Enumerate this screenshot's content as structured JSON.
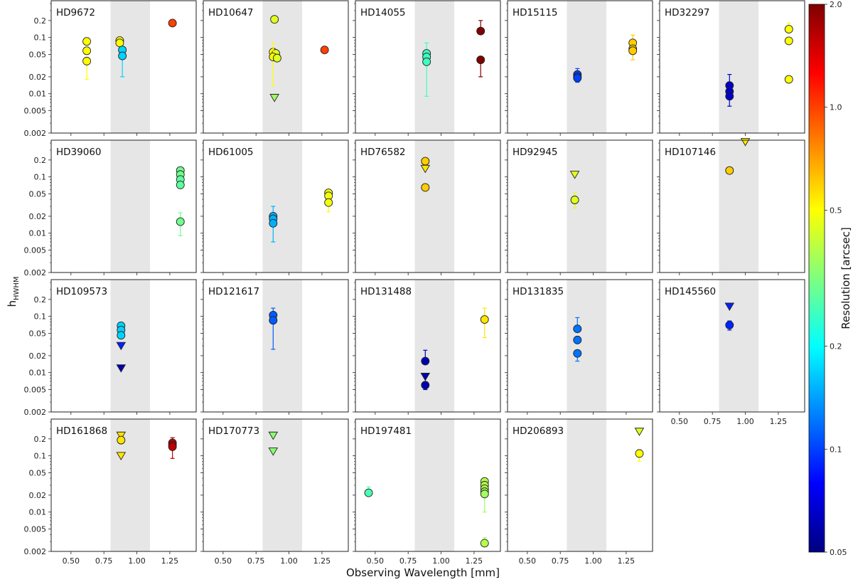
{
  "chart_data": {
    "type": "scatter",
    "xlabel": "Observing Wavelength [mm]",
    "ylabel": "h",
    "ylabel_sub": "HWHM",
    "xlim": [
      0.35,
      1.45
    ],
    "ylim": [
      0.002,
      0.45
    ],
    "xticks": [
      "0.50",
      "0.75",
      "1.00",
      "1.25"
    ],
    "xtick_values": [
      0.5,
      0.75,
      1.0,
      1.25
    ],
    "yticks": [
      "0.002",
      "0.005",
      "0.01",
      "0.02",
      "0.05",
      "0.1",
      "0.2"
    ],
    "ytick_values": [
      0.002,
      0.005,
      0.01,
      0.02,
      0.05,
      0.1,
      0.2
    ],
    "shaded_band": [
      0.8,
      1.1
    ],
    "colorbar": {
      "label": "Resolution [arcsec]",
      "range": [
        0.05,
        2.0
      ],
      "ticks": [
        "0.05",
        "0.1",
        "0.2",
        "0.5",
        "1.0",
        "2.0"
      ],
      "tick_values": [
        0.05,
        0.1,
        0.2,
        0.5,
        1.0,
        2.0
      ],
      "colormap": "jet"
    },
    "panels": [
      {
        "name": "HD9672",
        "points": [
          {
            "x": 0.62,
            "y": 0.085,
            "r": 0.5
          },
          {
            "x": 0.62,
            "y": 0.058,
            "r": 0.5
          },
          {
            "x": 0.62,
            "y": 0.038,
            "r": 0.5,
            "lo": 0.018
          },
          {
            "x": 0.87,
            "y": 0.088,
            "r": 0.5
          },
          {
            "x": 0.87,
            "y": 0.08,
            "r": 0.5
          },
          {
            "x": 0.89,
            "y": 0.06,
            "r": 0.17
          },
          {
            "x": 0.89,
            "y": 0.047,
            "r": 0.17,
            "lo": 0.02
          },
          {
            "x": 1.27,
            "y": 0.18,
            "r": 1.0
          }
        ]
      },
      {
        "name": "HD10647",
        "points": [
          {
            "x": 0.89,
            "y": 0.21,
            "r": 0.45
          },
          {
            "x": 0.88,
            "y": 0.055,
            "r": 0.5
          },
          {
            "x": 0.9,
            "y": 0.052,
            "r": 0.45
          },
          {
            "x": 0.88,
            "y": 0.045,
            "r": 0.5,
            "lo": 0.014,
            "hi": 0.08
          },
          {
            "x": 0.91,
            "y": 0.043,
            "r": 0.45
          },
          {
            "x": 0.89,
            "y": 0.0085,
            "r": 0.35,
            "lim": true
          },
          {
            "x": 1.27,
            "y": 0.06,
            "r": 1.0
          }
        ]
      },
      {
        "name": "HD14055",
        "points": [
          {
            "x": 0.89,
            "y": 0.052,
            "r": 0.25,
            "hi": 0.08
          },
          {
            "x": 0.89,
            "y": 0.045,
            "r": 0.25
          },
          {
            "x": 0.89,
            "y": 0.037,
            "r": 0.25,
            "lo": 0.009
          },
          {
            "x": 1.3,
            "y": 0.13,
            "r": 2.0,
            "hi": 0.2
          },
          {
            "x": 1.3,
            "y": 0.04,
            "r": 2.0,
            "lo": 0.02
          }
        ]
      },
      {
        "name": "HD15115",
        "points": [
          {
            "x": 0.88,
            "y": 0.022,
            "r": 0.1,
            "hi": 0.028
          },
          {
            "x": 0.88,
            "y": 0.02,
            "r": 0.1
          },
          {
            "x": 0.88,
            "y": 0.019,
            "r": 0.1,
            "lo": 0.016
          },
          {
            "x": 1.3,
            "y": 0.08,
            "r": 0.6,
            "hi": 0.11
          },
          {
            "x": 1.3,
            "y": 0.063,
            "r": 0.6
          },
          {
            "x": 1.3,
            "y": 0.058,
            "r": 0.6,
            "lo": 0.04
          }
        ]
      },
      {
        "name": "HD32297",
        "points": [
          {
            "x": 0.88,
            "y": 0.014,
            "r": 0.065,
            "hi": 0.022
          },
          {
            "x": 0.88,
            "y": 0.011,
            "r": 0.065
          },
          {
            "x": 0.88,
            "y": 0.009,
            "r": 0.065,
            "lo": 0.006
          },
          {
            "x": 1.33,
            "y": 0.14,
            "r": 0.5,
            "hi": 0.18
          },
          {
            "x": 1.33,
            "y": 0.087,
            "r": 0.5
          },
          {
            "x": 1.33,
            "y": 0.018,
            "r": 0.5
          }
        ]
      },
      {
        "name": "HD39060",
        "points": [
          {
            "x": 1.33,
            "y": 0.13,
            "r": 0.3
          },
          {
            "x": 1.33,
            "y": 0.11,
            "r": 0.3
          },
          {
            "x": 1.33,
            "y": 0.09,
            "r": 0.28
          },
          {
            "x": 1.33,
            "y": 0.072,
            "r": 0.28
          },
          {
            "x": 1.33,
            "y": 0.016,
            "r": 0.3,
            "lo": 0.009,
            "hi": 0.023
          }
        ]
      },
      {
        "name": "HD61005",
        "points": [
          {
            "x": 0.88,
            "y": 0.02,
            "r": 0.15,
            "hi": 0.03
          },
          {
            "x": 0.88,
            "y": 0.018,
            "r": 0.15
          },
          {
            "x": 0.88,
            "y": 0.015,
            "r": 0.15,
            "lo": 0.007
          },
          {
            "x": 1.3,
            "y": 0.052,
            "r": 0.48
          },
          {
            "x": 1.3,
            "y": 0.046,
            "r": 0.48
          },
          {
            "x": 1.3,
            "y": 0.035,
            "r": 0.48,
            "lo": 0.024
          }
        ]
      },
      {
        "name": "HD76582",
        "points": [
          {
            "x": 0.88,
            "y": 0.19,
            "r": 0.6
          },
          {
            "x": 0.88,
            "y": 0.14,
            "r": 0.55,
            "lim": true
          },
          {
            "x": 0.88,
            "y": 0.065,
            "r": 0.6
          }
        ]
      },
      {
        "name": "HD92945",
        "points": [
          {
            "x": 0.86,
            "y": 0.11,
            "r": 0.45,
            "lim": true
          },
          {
            "x": 0.86,
            "y": 0.039,
            "r": 0.45,
            "lo": 0.028,
            "hi": 0.052
          }
        ]
      },
      {
        "name": "HD107146",
        "points": [
          {
            "x": 0.88,
            "y": 0.13,
            "r": 0.6
          },
          {
            "x": 1.0,
            "y": 0.42,
            "r": 0.55,
            "lim": true
          }
        ]
      },
      {
        "name": "HD109573",
        "points": [
          {
            "x": 0.88,
            "y": 0.068,
            "r": 0.17
          },
          {
            "x": 0.88,
            "y": 0.057,
            "r": 0.17
          },
          {
            "x": 0.88,
            "y": 0.046,
            "r": 0.17
          },
          {
            "x": 0.88,
            "y": 0.03,
            "r": 0.09,
            "lim": true
          },
          {
            "x": 0.88,
            "y": 0.012,
            "r": 0.06,
            "lim": true
          }
        ]
      },
      {
        "name": "HD121617",
        "points": [
          {
            "x": 0.88,
            "y": 0.105,
            "r": 0.11,
            "hi": 0.14
          },
          {
            "x": 0.88,
            "y": 0.085,
            "r": 0.11,
            "lo": 0.026
          }
        ]
      },
      {
        "name": "HD131488",
        "points": [
          {
            "x": 0.88,
            "y": 0.016,
            "r": 0.06,
            "hi": 0.025
          },
          {
            "x": 0.88,
            "y": 0.0085,
            "r": 0.06,
            "lim": true
          },
          {
            "x": 0.88,
            "y": 0.006,
            "r": 0.06,
            "lo": 0.005
          },
          {
            "x": 1.33,
            "y": 0.088,
            "r": 0.55,
            "lo": 0.042,
            "hi": 0.14
          }
        ]
      },
      {
        "name": "HD131835",
        "points": [
          {
            "x": 0.88,
            "y": 0.06,
            "r": 0.12,
            "hi": 0.095
          },
          {
            "x": 0.88,
            "y": 0.038,
            "r": 0.12
          },
          {
            "x": 0.88,
            "y": 0.022,
            "r": 0.12,
            "lo": 0.016
          }
        ]
      },
      {
        "name": "HD145560",
        "points": [
          {
            "x": 0.88,
            "y": 0.15,
            "r": 0.09,
            "lim": true
          },
          {
            "x": 0.88,
            "y": 0.07,
            "r": 0.09,
            "lo": 0.057,
            "hi": 0.083
          }
        ]
      },
      {
        "name": "HD161868",
        "points": [
          {
            "x": 0.88,
            "y": 0.23,
            "r": 0.55,
            "lim": true
          },
          {
            "x": 0.88,
            "y": 0.19,
            "r": 0.55
          },
          {
            "x": 0.88,
            "y": 0.1,
            "r": 0.55,
            "lim": true
          },
          {
            "x": 1.27,
            "y": 0.17,
            "r": 1.6,
            "hi": 0.21
          },
          {
            "x": 1.27,
            "y": 0.155,
            "r": 1.6
          },
          {
            "x": 1.27,
            "y": 0.145,
            "r": 1.6,
            "lo": 0.09
          }
        ]
      },
      {
        "name": "HD170773",
        "points": [
          {
            "x": 0.88,
            "y": 0.23,
            "r": 0.33,
            "lim": true
          },
          {
            "x": 0.88,
            "y": 0.12,
            "r": 0.33,
            "lim": true
          }
        ]
      },
      {
        "name": "HD197481",
        "points": [
          {
            "x": 0.45,
            "y": 0.022,
            "r": 0.26,
            "hi": 0.028
          },
          {
            "x": 1.33,
            "y": 0.035,
            "r": 0.38
          },
          {
            "x": 1.33,
            "y": 0.03,
            "r": 0.38
          },
          {
            "x": 1.33,
            "y": 0.026,
            "r": 0.38
          },
          {
            "x": 1.33,
            "y": 0.023,
            "r": 0.36
          },
          {
            "x": 1.33,
            "y": 0.021,
            "r": 0.36,
            "lo": 0.01
          },
          {
            "x": 1.33,
            "y": 0.0028,
            "r": 0.38,
            "hi": 0.0035
          }
        ]
      },
      {
        "name": "HD206893",
        "points": [
          {
            "x": 1.35,
            "y": 0.27,
            "r": 0.45,
            "lim": true
          },
          {
            "x": 1.35,
            "y": 0.11,
            "r": 0.5,
            "lo": 0.08
          }
        ]
      }
    ]
  }
}
